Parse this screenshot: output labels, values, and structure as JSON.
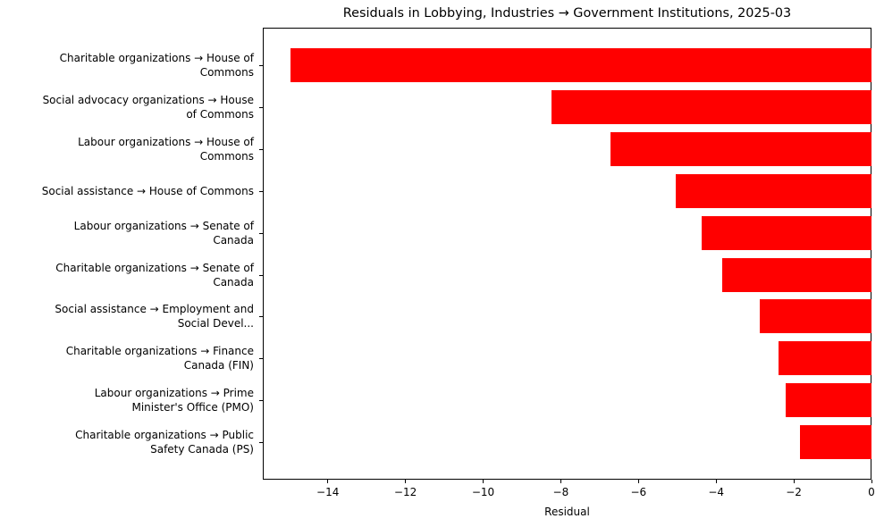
{
  "chart_data": {
    "type": "bar",
    "orientation": "horizontal",
    "title": "Residuals in Lobbying, Industries → Government Institutions, 2025-03",
    "xlabel": "Residual",
    "ylabel": "",
    "xlim": [
      -15.7,
      0
    ],
    "grid": false,
    "legend": null,
    "bar_color": "#ff0000",
    "categories": [
      "Charitable organizations → House of\nCommons",
      "Social advocacy organizations → House\nof Commons",
      "Labour organizations → House of\nCommons",
      "Social assistance → House of Commons",
      "Labour organizations → Senate of\nCanada",
      "Charitable organizations → Senate of\nCanada",
      "Social assistance → Employment and\nSocial Devel...",
      "Charitable organizations → Finance\nCanada (FIN)",
      "Labour organizations → Prime\nMinister's Office (PMO)",
      "Charitable organizations → Public\nSafety Canada (PS)"
    ],
    "values": [
      -14.95,
      -8.25,
      -6.71,
      -5.05,
      -4.38,
      -3.85,
      -2.88,
      -2.4,
      -2.21,
      -1.84
    ],
    "xticks": [
      -14,
      -12,
      -10,
      -8,
      -6,
      -4,
      -2,
      0
    ],
    "xtick_labels": [
      "−14",
      "−12",
      "−10",
      "−8",
      "−6",
      "−4",
      "−2",
      "0"
    ]
  }
}
